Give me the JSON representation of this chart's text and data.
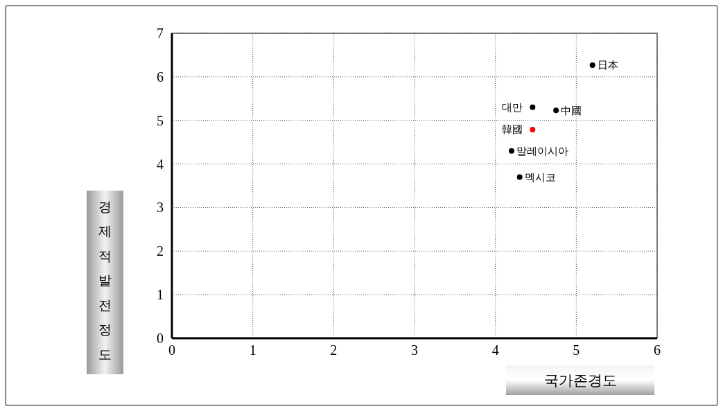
{
  "chart_data": {
    "type": "scatter",
    "xlabel": "국가존경도",
    "ylabel": "경제적발전정도",
    "xlim": [
      0,
      6
    ],
    "ylim": [
      0,
      7
    ],
    "xticks": [
      0,
      1,
      2,
      3,
      4,
      5,
      6
    ],
    "yticks": [
      0,
      1,
      2,
      3,
      4,
      5,
      6,
      7
    ],
    "grid": true,
    "marker": "circle",
    "series": [
      {
        "x": [
          5.2,
          4.46,
          4.75,
          4.46,
          4.2,
          4.3
        ],
        "values": [
          6.27,
          5.3,
          5.23,
          4.79,
          4.3,
          3.7
        ],
        "colors": [
          "#000000",
          "#000000",
          "#000000",
          "#ff0000",
          "#000000",
          "#000000"
        ]
      }
    ],
    "annotations": [
      {
        "text": "日本",
        "x": 5.2,
        "y": 6.27
      },
      {
        "text": "대만",
        "x": 4.46,
        "y": 5.3
      },
      {
        "text": "中國",
        "x": 4.75,
        "y": 5.23
      },
      {
        "text": "韓國",
        "x": 4.46,
        "y": 4.79
      },
      {
        "text": "말레이시아",
        "x": 4.2,
        "y": 4.3
      },
      {
        "text": "멕시코",
        "x": 4.3,
        "y": 3.7
      }
    ]
  }
}
